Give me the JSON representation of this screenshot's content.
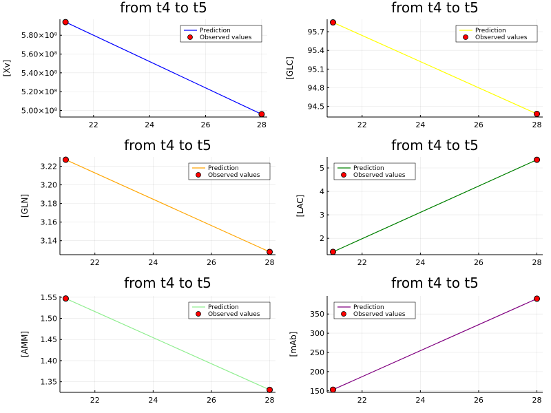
{
  "chart_data": [
    {
      "type": "line",
      "title": "from t4 to t5",
      "ylabel": "[Xv]",
      "x": [
        21,
        28
      ],
      "series": [
        {
          "name": "Prediction",
          "kind": "line",
          "color": "#0000ff",
          "values": [
            594000000,
            496000000
          ]
        },
        {
          "name": "Observed values",
          "kind": "scatter",
          "color": "#ff0000",
          "values": [
            594000000,
            496000000
          ]
        }
      ],
      "xlim": [
        20.8,
        28.2
      ],
      "ylim": [
        493000000,
        597000000
      ],
      "xticks": [
        22,
        24,
        26,
        28
      ],
      "xtick_labels": [
        "22",
        "24",
        "26",
        "28"
      ],
      "yticks": [
        500000000,
        520000000,
        540000000,
        560000000,
        580000000
      ],
      "ytick_labels": [
        "5.00×10⁸",
        "5.20×10⁸",
        "5.40×10⁸",
        "5.60×10⁸",
        "5.80×10⁸"
      ],
      "legend": "top-right",
      "grid": true
    },
    {
      "type": "line",
      "title": "from t4 to t5",
      "ylabel": "[GLC]",
      "x": [
        21,
        28
      ],
      "series": [
        {
          "name": "Prediction",
          "kind": "line",
          "color": "#ffff00",
          "values": [
            95.85,
            94.38
          ]
        },
        {
          "name": "Observed values",
          "kind": "scatter",
          "color": "#ff0000",
          "values": [
            95.85,
            94.38
          ]
        }
      ],
      "xlim": [
        20.8,
        28.2
      ],
      "ylim": [
        94.33,
        95.9
      ],
      "xticks": [
        22,
        24,
        26,
        28
      ],
      "xtick_labels": [
        "22",
        "24",
        "26",
        "28"
      ],
      "yticks": [
        94.5,
        94.8,
        95.1,
        95.4,
        95.7
      ],
      "ytick_labels": [
        "94.5",
        "94.8",
        "95.1",
        "95.4",
        "95.7"
      ],
      "legend": "top-right",
      "grid": true
    },
    {
      "type": "line",
      "title": "from t4 to t5",
      "ylabel": "[GLN]",
      "x": [
        21,
        28
      ],
      "series": [
        {
          "name": "Prediction",
          "kind": "line",
          "color": "#ffa500",
          "values": [
            3.227,
            3.128
          ]
        },
        {
          "name": "Observed values",
          "kind": "scatter",
          "color": "#ff0000",
          "values": [
            3.227,
            3.128
          ]
        }
      ],
      "xlim": [
        20.8,
        28.2
      ],
      "ylim": [
        3.125,
        3.23
      ],
      "xticks": [
        22,
        24,
        26,
        28
      ],
      "xtick_labels": [
        "22",
        "24",
        "26",
        "28"
      ],
      "yticks": [
        3.14,
        3.16,
        3.18,
        3.2,
        3.22
      ],
      "ytick_labels": [
        "3.14",
        "3.16",
        "3.18",
        "3.20",
        "3.22"
      ],
      "legend": "top-right",
      "grid": true
    },
    {
      "type": "line",
      "title": "from t4 to t5",
      "ylabel": "[LAC]",
      "x": [
        21,
        28
      ],
      "series": [
        {
          "name": "Prediction",
          "kind": "line",
          "color": "#008000",
          "values": [
            1.42,
            5.35
          ]
        },
        {
          "name": "Observed values",
          "kind": "scatter",
          "color": "#ff0000",
          "values": [
            1.42,
            5.35
          ]
        }
      ],
      "xlim": [
        20.8,
        28.2
      ],
      "ylim": [
        1.3,
        5.47
      ],
      "xticks": [
        22,
        24,
        26,
        28
      ],
      "xtick_labels": [
        "22",
        "24",
        "26",
        "28"
      ],
      "yticks": [
        2,
        3,
        4,
        5
      ],
      "ytick_labels": [
        "2",
        "3",
        "4",
        "5"
      ],
      "legend": "top-left",
      "grid": true
    },
    {
      "type": "line",
      "title": "from t4 to t5",
      "ylabel": "[AMM]",
      "x": [
        21,
        28
      ],
      "series": [
        {
          "name": "Prediction",
          "kind": "line",
          "color": "#90ee90",
          "values": [
            1.547,
            1.331
          ]
        },
        {
          "name": "Observed values",
          "kind": "scatter",
          "color": "#ff0000",
          "values": [
            1.547,
            1.331
          ]
        }
      ],
      "xlim": [
        20.8,
        28.2
      ],
      "ylim": [
        1.325,
        1.553
      ],
      "xticks": [
        22,
        24,
        26,
        28
      ],
      "xtick_labels": [
        "22",
        "24",
        "26",
        "28"
      ],
      "yticks": [
        1.35,
        1.4,
        1.45,
        1.5,
        1.55
      ],
      "ytick_labels": [
        "1.35",
        "1.40",
        "1.45",
        "1.50",
        "1.55"
      ],
      "legend": "top-right",
      "grid": true
    },
    {
      "type": "line",
      "title": "from t4 to t5",
      "ylabel": "[mAb]",
      "x": [
        21,
        28
      ],
      "series": [
        {
          "name": "Prediction",
          "kind": "line",
          "color": "#800080",
          "values": [
            153,
            390
          ]
        },
        {
          "name": "Observed values",
          "kind": "scatter",
          "color": "#ff0000",
          "values": [
            153,
            390
          ]
        }
      ],
      "xlim": [
        20.8,
        28.2
      ],
      "ylim": [
        146,
        397
      ],
      "xticks": [
        22,
        24,
        26,
        28
      ],
      "xtick_labels": [
        "22",
        "24",
        "26",
        "28"
      ],
      "yticks": [
        150,
        200,
        250,
        300,
        350
      ],
      "ytick_labels": [
        "150",
        "200",
        "250",
        "300",
        "350"
      ],
      "legend": "top-left",
      "grid": true
    }
  ]
}
